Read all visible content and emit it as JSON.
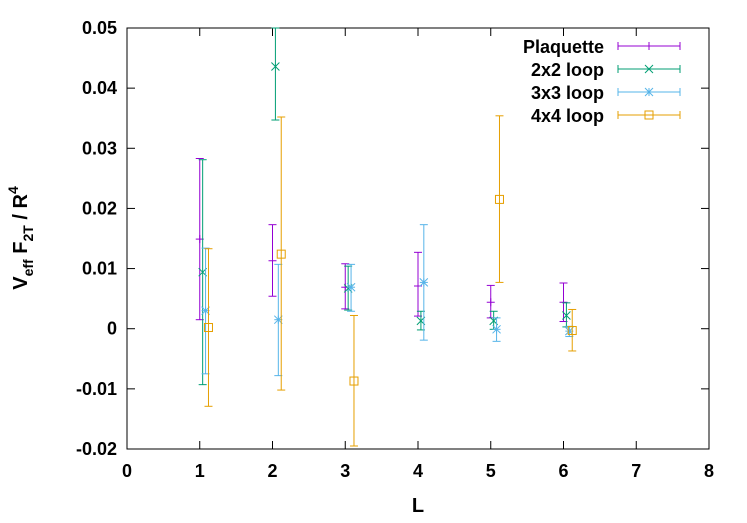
{
  "chart_data": {
    "type": "scatter",
    "xlabel": "L",
    "ylabel": "V_eff F_2T / R^4",
    "ylabel_parts": {
      "v": "V",
      "eff": "eff",
      "f": " F",
      "sub2t": "2T",
      "r": " / R",
      "sup4": "4"
    },
    "xlim": [
      0,
      8
    ],
    "ylim": [
      -0.02,
      0.05
    ],
    "x_ticks": [
      0,
      1,
      2,
      3,
      4,
      5,
      6,
      7,
      8
    ],
    "x_tick_labels": [
      "0",
      "1",
      "2",
      "3",
      "4",
      "5",
      "6",
      "7",
      "8"
    ],
    "y_ticks": [
      -0.02,
      -0.01,
      0,
      0.01,
      0.02,
      0.03,
      0.04,
      0.05
    ],
    "y_tick_labels": [
      "-0.02",
      "-0.01",
      "0",
      "0.01",
      "0.02",
      "0.03",
      "0.04",
      "0.05"
    ],
    "grid": false,
    "legend_position": "top-right",
    "series": [
      {
        "name": "Plaquette",
        "color": "#9400d3",
        "marker": "plus",
        "x": [
          1,
          2,
          3,
          4,
          5,
          6
        ],
        "y": [
          0.0149,
          0.0113,
          0.0069,
          0.0071,
          0.0044,
          0.0044
        ],
        "err_low": [
          0.0015,
          0.0054,
          0.0033,
          0.0021,
          0.0018,
          0.0012
        ],
        "err_high": [
          0.0283,
          0.0173,
          0.0108,
          0.0127,
          0.0072,
          0.0076
        ]
      },
      {
        "name": "2x2 loop",
        "color": "#009e73",
        "marker": "x",
        "x": [
          1.04,
          2.04,
          3.04,
          4.04,
          5.04,
          6.04
        ],
        "y": [
          0.0094,
          0.0436,
          0.0067,
          0.0013,
          0.0013,
          0.0022
        ],
        "err_low": [
          -0.0093,
          0.0347,
          0.0031,
          -0.0002,
          -0.0001,
          0.0003
        ],
        "err_high": [
          0.0281,
          0.05,
          0.0104,
          0.0029,
          0.0029,
          0.0043
        ]
      },
      {
        "name": "3x3 loop",
        "color": "#56b4e9",
        "marker": "star",
        "x": [
          1.08,
          2.08,
          3.08,
          4.08,
          5.08,
          6.08
        ],
        "y": [
          0.003,
          0.0015,
          0.0069,
          0.0077,
          -0.0001,
          -0.0004
        ],
        "err_low": [
          -0.0075,
          -0.0078,
          0.0029,
          -0.0019,
          -0.0021,
          -0.0013
        ],
        "err_high": [
          0.0134,
          0.0107,
          0.0107,
          0.0173,
          0.0018,
          0.0004
        ]
      },
      {
        "name": "4x4 loop",
        "color": "#e69f00",
        "marker": "square",
        "x": [
          1.12,
          2.12,
          3.12,
          4.12,
          5.12,
          6.12
        ],
        "y": [
          0.0002,
          0.0124,
          -0.0087,
          null,
          0.0215,
          -0.0003
        ],
        "err_low": [
          -0.0129,
          -0.0102,
          -0.0195,
          null,
          0.0077,
          -0.0037
        ],
        "err_high": [
          0.0133,
          0.0352,
          0.0022,
          null,
          0.0354,
          0.0032
        ]
      }
    ]
  }
}
